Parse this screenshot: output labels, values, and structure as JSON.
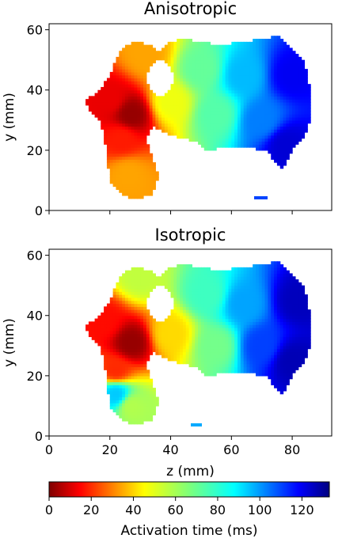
{
  "chart_data": [
    {
      "type": "heatmap",
      "title": "Anisotropic",
      "xlabel": "",
      "ylabel": "y (mm)",
      "xlim": [
        0,
        93
      ],
      "ylim": [
        0,
        62
      ],
      "xticks": [
        0,
        20,
        40,
        60,
        80
      ],
      "yticks": [
        0,
        20,
        40,
        60
      ],
      "xtick_labels_visible": false,
      "colormap": "jet_r",
      "vmin": 0,
      "vmax": 133,
      "seeds": [
        {
          "z": 27,
          "y": 32,
          "t": 3
        },
        {
          "z": 20,
          "y": 37,
          "t": 14
        },
        {
          "z": 24,
          "y": 24,
          "t": 20
        },
        {
          "z": 26,
          "y": 12,
          "t": 38
        },
        {
          "z": 32,
          "y": 52,
          "t": 38
        },
        {
          "z": 40,
          "y": 36,
          "t": 52
        },
        {
          "z": 50,
          "y": 47,
          "t": 70
        },
        {
          "z": 55,
          "y": 32,
          "t": 72
        },
        {
          "z": 64,
          "y": 45,
          "t": 92
        },
        {
          "z": 70,
          "y": 30,
          "t": 100
        },
        {
          "z": 80,
          "y": 45,
          "t": 118
        },
        {
          "z": 78,
          "y": 22,
          "t": 122
        }
      ],
      "region": [
        [
          16,
          39
        ],
        [
          20,
          45
        ],
        [
          22,
          50
        ],
        [
          25,
          55
        ],
        [
          29,
          56
        ],
        [
          33,
          55
        ],
        [
          36,
          53
        ],
        [
          40,
          56
        ],
        [
          44,
          57
        ],
        [
          50,
          56
        ],
        [
          57,
          55
        ],
        [
          64,
          56
        ],
        [
          70,
          57
        ],
        [
          76,
          58
        ],
        [
          80,
          54
        ],
        [
          84,
          50
        ],
        [
          86,
          40
        ],
        [
          86,
          30
        ],
        [
          84,
          25
        ],
        [
          80,
          20
        ],
        [
          77,
          14
        ],
        [
          74,
          16
        ],
        [
          72,
          20
        ],
        [
          64,
          21
        ],
        [
          58,
          21
        ],
        [
          52,
          20
        ],
        [
          48,
          23
        ],
        [
          44,
          24
        ],
        [
          38,
          26
        ],
        [
          34,
          28
        ],
        [
          32,
          24
        ],
        [
          34,
          18
        ],
        [
          36,
          12
        ],
        [
          34,
          5
        ],
        [
          29,
          4
        ],
        [
          24,
          5
        ],
        [
          20,
          10
        ],
        [
          19,
          18
        ],
        [
          18,
          26
        ],
        [
          16,
          31
        ],
        [
          13,
          33
        ],
        [
          12,
          37
        ]
      ]
    },
    {
      "type": "heatmap",
      "title": "Isotropic",
      "xlabel": "z (mm)",
      "ylabel": "y (mm)",
      "xlim": [
        0,
        93
      ],
      "ylim": [
        0,
        62
      ],
      "xticks": [
        0,
        20,
        40,
        60,
        80
      ],
      "yticks": [
        0,
        20,
        40,
        60
      ],
      "xtick_labels_visible": true,
      "colormap": "jet_r",
      "vmin": 0,
      "vmax": 133,
      "seeds": [
        {
          "z": 27,
          "y": 31,
          "t": 3
        },
        {
          "z": 18,
          "y": 38,
          "t": 18
        },
        {
          "z": 22,
          "y": 22,
          "t": 22
        },
        {
          "z": 22,
          "y": 14,
          "t": 90
        },
        {
          "z": 27,
          "y": 10,
          "t": 60
        },
        {
          "z": 30,
          "y": 53,
          "t": 58
        },
        {
          "z": 40,
          "y": 34,
          "t": 45
        },
        {
          "z": 52,
          "y": 47,
          "t": 75
        },
        {
          "z": 55,
          "y": 30,
          "t": 68
        },
        {
          "z": 64,
          "y": 44,
          "t": 95
        },
        {
          "z": 70,
          "y": 30,
          "t": 108
        },
        {
          "z": 82,
          "y": 45,
          "t": 125
        },
        {
          "z": 80,
          "y": 25,
          "t": 126
        }
      ],
      "region": [
        [
          16,
          39
        ],
        [
          20,
          45
        ],
        [
          22,
          50
        ],
        [
          25,
          55
        ],
        [
          29,
          56
        ],
        [
          33,
          55
        ],
        [
          36,
          53
        ],
        [
          40,
          56
        ],
        [
          44,
          57
        ],
        [
          50,
          56
        ],
        [
          57,
          55
        ],
        [
          64,
          56
        ],
        [
          70,
          57
        ],
        [
          76,
          58
        ],
        [
          80,
          54
        ],
        [
          84,
          50
        ],
        [
          86,
          40
        ],
        [
          86,
          30
        ],
        [
          84,
          25
        ],
        [
          80,
          20
        ],
        [
          77,
          14
        ],
        [
          74,
          16
        ],
        [
          72,
          20
        ],
        [
          64,
          21
        ],
        [
          58,
          21
        ],
        [
          52,
          20
        ],
        [
          48,
          23
        ],
        [
          44,
          24
        ],
        [
          38,
          26
        ],
        [
          34,
          28
        ],
        [
          32,
          24
        ],
        [
          34,
          18
        ],
        [
          36,
          12
        ],
        [
          34,
          5
        ],
        [
          29,
          4
        ],
        [
          24,
          5
        ],
        [
          20,
          10
        ],
        [
          19,
          18
        ],
        [
          18,
          26
        ],
        [
          16,
          31
        ],
        [
          13,
          33
        ],
        [
          12,
          37
        ]
      ]
    }
  ],
  "colorbar": {
    "label": "Activation time (ms)",
    "ticks": [
      0,
      20,
      40,
      60,
      80,
      100,
      120
    ],
    "vmin": 0,
    "vmax": 133,
    "colormap": "jet_r"
  }
}
